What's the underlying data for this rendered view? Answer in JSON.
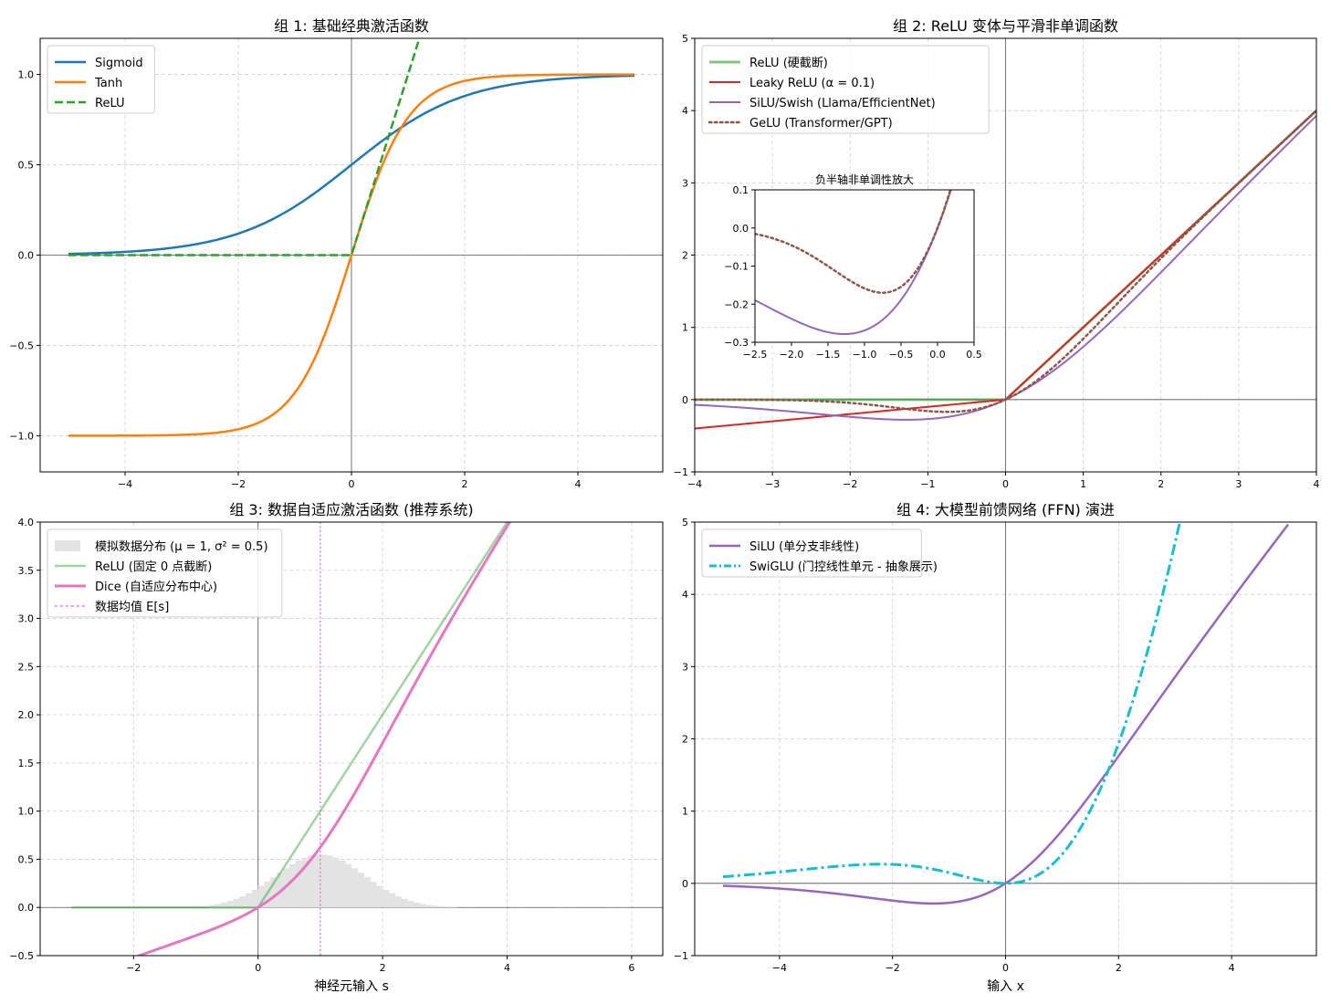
{
  "chart_data": [
    {
      "type": "line",
      "title": "组 1: 基础经典激活函数",
      "xlabel": "",
      "ylabel": "",
      "xlim": [
        -5.5,
        5.5
      ],
      "ylim": [
        -1.2,
        1.2
      ],
      "xticks": [
        -4,
        -2,
        0,
        2,
        4
      ],
      "yticks": [
        -1.0,
        -0.5,
        0.0,
        0.5,
        1.0
      ],
      "grid": true,
      "legend": "upper-left",
      "series": [
        {
          "name": "Sigmoid",
          "fn": "sigmoid",
          "domain": [
            -5,
            5
          ],
          "color": "#1f77b4",
          "style": "solid",
          "width": 2.5
        },
        {
          "name": "Tanh",
          "fn": "tanh",
          "domain": [
            -5,
            5
          ],
          "color": "#ff7f0e",
          "style": "solid",
          "width": 2.5
        },
        {
          "name": "ReLU",
          "fn": "relu",
          "domain": [
            -5,
            5
          ],
          "color": "#2ca02c",
          "style": "dashed",
          "width": 2.5
        }
      ]
    },
    {
      "type": "line",
      "title": "组 2: ReLU 变体与平滑非单调函数",
      "xlabel": "",
      "ylabel": "",
      "xlim": [
        -4,
        4
      ],
      "ylim": [
        -1,
        5
      ],
      "xticks": [
        -4,
        -3,
        -2,
        -1,
        0,
        1,
        2,
        3,
        4
      ],
      "yticks": [
        -1,
        0,
        1,
        2,
        3,
        4,
        5
      ],
      "grid": true,
      "legend": "upper-left",
      "series": [
        {
          "name": "ReLU (硬截断)",
          "fn": "relu",
          "domain": [
            -4,
            4
          ],
          "color": "#2ca02c",
          "alpha": 0.6,
          "style": "solid",
          "width": 3
        },
        {
          "name": "Leaky ReLU (α = 0.1)",
          "fn": "leaky",
          "domain": [
            -4,
            4
          ],
          "color": "#d62728",
          "style": "solid",
          "width": 2
        },
        {
          "name": "SiLU/Swish (Llama/EfficientNet)",
          "fn": "silu",
          "domain": [
            -4,
            4
          ],
          "color": "#9467bd",
          "style": "solid",
          "width": 2
        },
        {
          "name": "GeLU (Transformer/GPT)",
          "fn": "gelu",
          "domain": [
            -4,
            4
          ],
          "color": "#8c564b",
          "style": "dotted",
          "width": 2.5
        }
      ],
      "inset": {
        "title": "负半轴非单调性放大",
        "xlim": [
          -2.5,
          0.5
        ],
        "ylim": [
          -0.3,
          0.1
        ],
        "xticks": [
          -2.5,
          -2.0,
          -1.5,
          -1.0,
          -0.5,
          0.0,
          0.5
        ],
        "xtick_labels": [
          "-2.5",
          "-2.0",
          "-1.5",
          "-1.0",
          "-0.5",
          "0.0",
          "0.5"
        ],
        "yticks": [
          -0.3,
          -0.2,
          -0.1,
          0.0,
          0.1
        ],
        "ytick_labels": [
          "-0.3",
          "-0.2",
          "-0.1",
          "0.0",
          "0.1"
        ],
        "series": [
          "silu",
          "gelu"
        ]
      }
    },
    {
      "type": "line",
      "title": "组 3: 数据自适应激活函数 (推荐系统)",
      "xlabel": "神经元输入 s",
      "ylabel": "",
      "xlim": [
        -3.5,
        6.5
      ],
      "ylim": [
        -0.5,
        4.0
      ],
      "xticks": [
        -2,
        0,
        2,
        4,
        6
      ],
      "yticks": [
        -0.5,
        0.0,
        0.5,
        1.0,
        1.5,
        2.0,
        2.5,
        3.0,
        3.5,
        4.0
      ],
      "ytick_labels": [
        "-0.5",
        "0.0",
        "0.5",
        "1.0",
        "1.5",
        "2.0",
        "2.5",
        "3.0",
        "3.5",
        "4.0"
      ],
      "grid": true,
      "legend": "upper-left",
      "histogram": {
        "name": "模拟数据分布 (μ = 1, σ² = 0.5)",
        "mean": 1,
        "variance": 0.5,
        "peak_height": 0.55,
        "color": "#e3e3e3"
      },
      "series": [
        {
          "name": "ReLU (固定 0 点截断)",
          "fn": "relu",
          "domain": [
            -3,
            4.1
          ],
          "color": "#2ca02c",
          "alpha": 0.45,
          "style": "solid",
          "width": 2.5
        },
        {
          "name": "Dice (自适应分布中心)",
          "fn": "dice",
          "domain": [
            -3,
            4.1
          ],
          "color": "#e377c2",
          "style": "solid",
          "width": 3
        }
      ],
      "vline": {
        "name": "数据均值 E[s]",
        "x": 1,
        "color": "#e377c2",
        "style": "dotted"
      }
    },
    {
      "type": "line",
      "title": "组 4: 大模型前馈网络 (FFN) 演进",
      "xlabel": "输入 x",
      "ylabel": "",
      "xlim": [
        -5.5,
        5.5
      ],
      "ylim": [
        -1,
        5
      ],
      "xticks": [
        -4,
        -2,
        0,
        2,
        4
      ],
      "yticks": [
        -1,
        0,
        1,
        2,
        3,
        4,
        5
      ],
      "grid": true,
      "legend": "upper-left",
      "series": [
        {
          "name": "SiLU (单分支非线性)",
          "fn": "silu",
          "domain": [
            -5,
            5
          ],
          "color": "#9467bd",
          "style": "solid",
          "width": 2.5
        },
        {
          "name": "SwiGLU (门控线性单元 - 抽象展示)",
          "fn": "swiglu",
          "domain": [
            -5,
            5
          ],
          "color": "#17becf",
          "style": "dashdot",
          "width": 3
        }
      ]
    }
  ]
}
